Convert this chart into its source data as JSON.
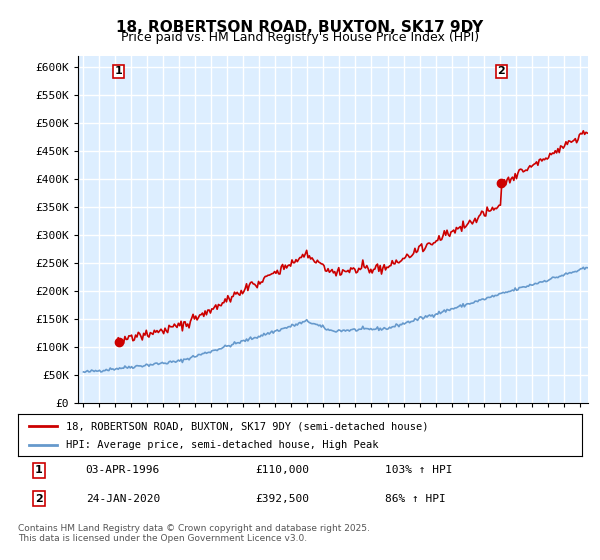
{
  "title": "18, ROBERTSON ROAD, BUXTON, SK17 9DY",
  "subtitle": "Price paid vs. HM Land Registry's House Price Index (HPI)",
  "ylim": [
    0,
    620000
  ],
  "yticks": [
    0,
    50000,
    100000,
    150000,
    200000,
    250000,
    300000,
    350000,
    400000,
    450000,
    500000,
    550000,
    600000
  ],
  "ytick_labels": [
    "£0",
    "£50K",
    "£100K",
    "£150K",
    "£200K",
    "£250K",
    "£300K",
    "£350K",
    "£400K",
    "£450K",
    "£500K",
    "£550K",
    "£600K"
  ],
  "sale1_date": "03-APR-1996",
  "sale1_price": 110000,
  "sale1_hpi": "103% ↑ HPI",
  "sale2_date": "24-JAN-2020",
  "sale2_price": 392500,
  "sale2_hpi": "86% ↑ HPI",
  "legend_line1": "18, ROBERTSON ROAD, BUXTON, SK17 9DY (semi-detached house)",
  "legend_line2": "HPI: Average price, semi-detached house, High Peak",
  "line1_color": "#cc0000",
  "line2_color": "#6699cc",
  "background_color": "#ddeeff",
  "grid_color": "#ffffff",
  "footnote": "Contains HM Land Registry data © Crown copyright and database right 2025.\nThis data is licensed under the Open Government Licence v3.0.",
  "x_start_year": 1994,
  "x_end_year": 2025
}
